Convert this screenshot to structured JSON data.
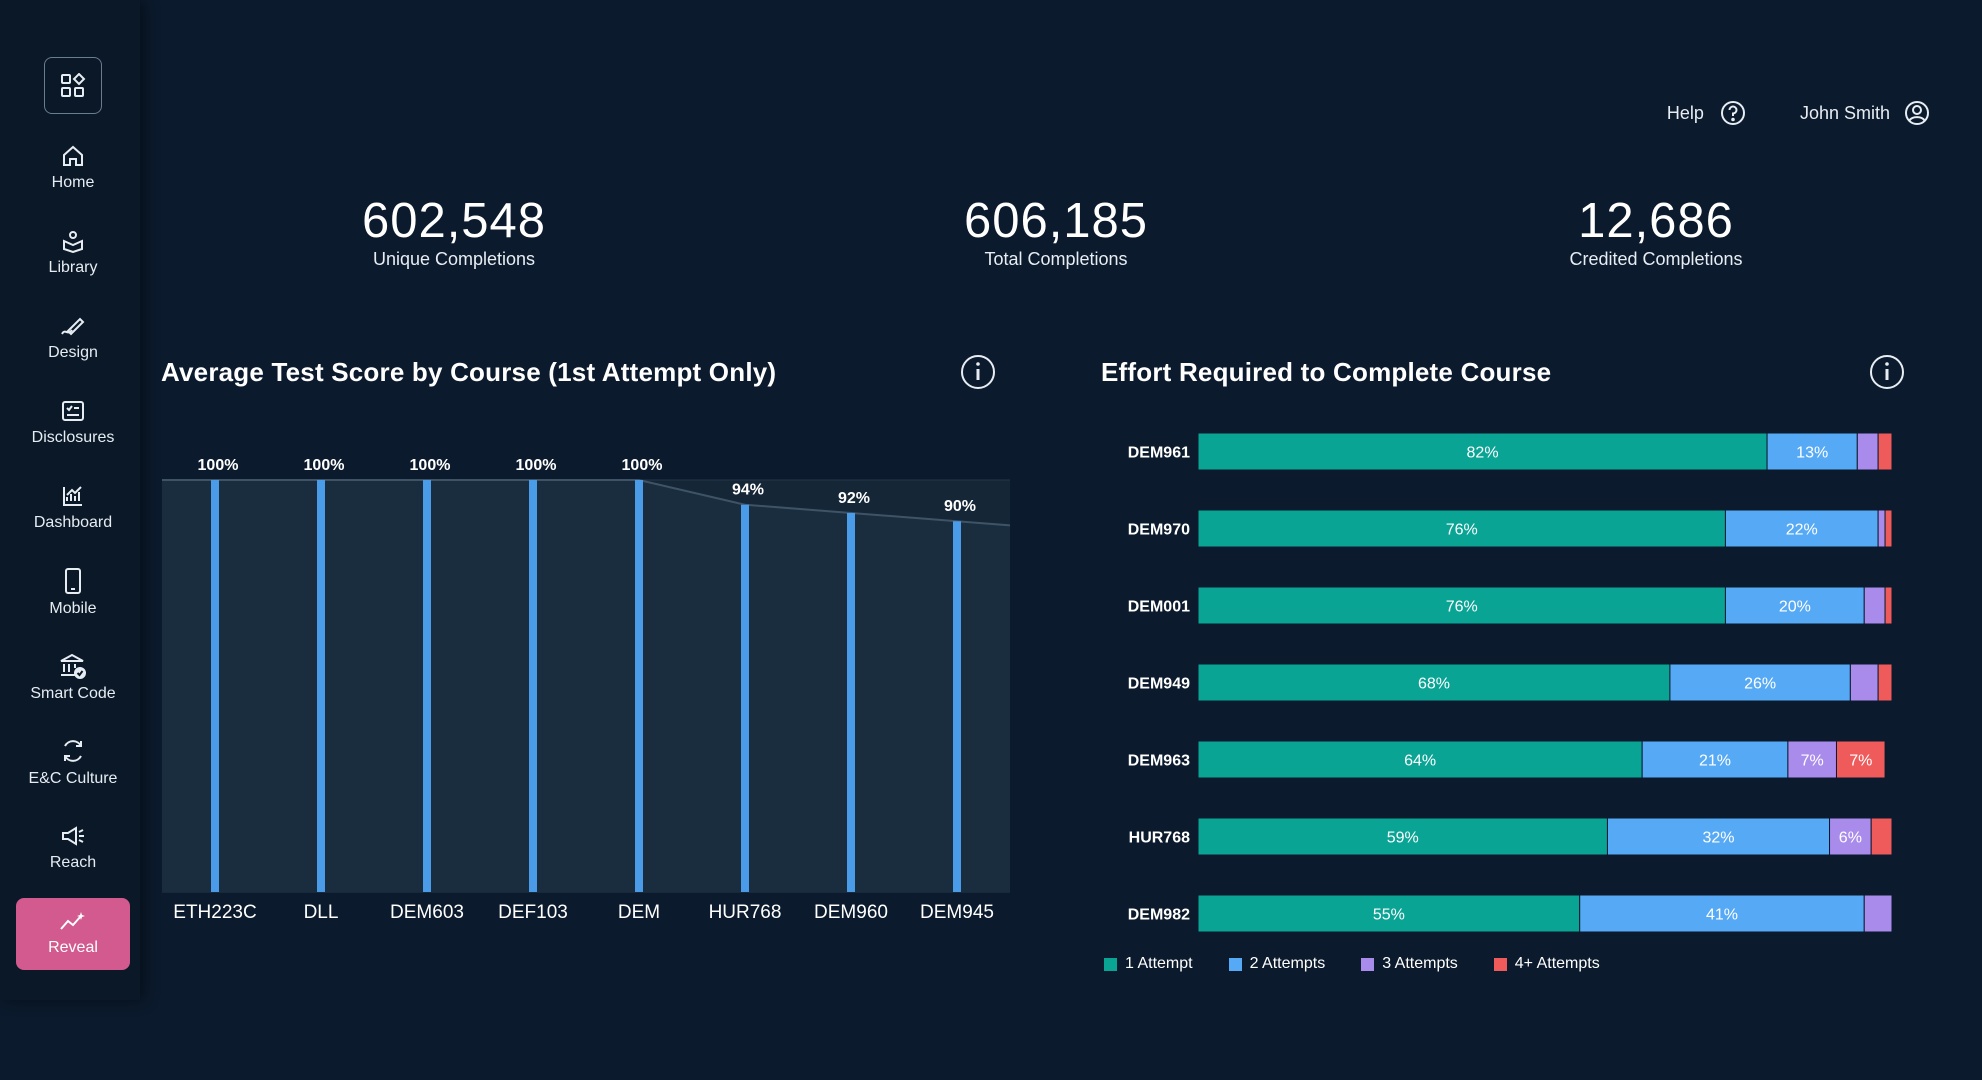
{
  "sidebar": {
    "items": [
      {
        "label": "Home",
        "icon": "home-icon"
      },
      {
        "label": "Library",
        "icon": "library-icon"
      },
      {
        "label": "Design",
        "icon": "design-icon"
      },
      {
        "label": "Disclosures",
        "icon": "disclosures-icon"
      },
      {
        "label": "Dashboard",
        "icon": "dashboard-icon"
      },
      {
        "label": "Mobile",
        "icon": "mobile-icon"
      },
      {
        "label": "Smart Code",
        "icon": "smart-code-icon"
      },
      {
        "label": "E&C Culture",
        "icon": "culture-icon"
      },
      {
        "label": "Reach",
        "icon": "reach-icon"
      },
      {
        "label": "Reveal",
        "icon": "reveal-icon"
      }
    ],
    "active_accent": "#d25a8f"
  },
  "header": {
    "help_label": "Help",
    "user_name": "John Smith"
  },
  "kpis": [
    {
      "value": "602,548",
      "label": "Unique Completions"
    },
    {
      "value": "606,185",
      "label": "Total Completions"
    },
    {
      "value": "12,686",
      "label": "Credited Completions"
    }
  ],
  "panels": {
    "left_title": "Average Test Score by Course (1st Attempt Only)",
    "right_title": "Effort Required to Complete Course"
  },
  "chart_data": [
    {
      "type": "bar",
      "title": "Average Test Score by Course (1st Attempt Only)",
      "categories": [
        "ETH223C",
        "DLL",
        "DEM603",
        "DEF103",
        "DEM",
        "HUR768",
        "DEM960",
        "DEM945"
      ],
      "values": [
        100,
        100,
        100,
        100,
        100,
        94,
        92,
        90
      ],
      "value_labels": [
        "100%",
        "100%",
        "100%",
        "100%",
        "100%",
        "94%",
        "92%",
        "90%"
      ],
      "ylim": [
        0,
        100
      ],
      "grid": true,
      "color": "#4a9be8"
    },
    {
      "type": "bar",
      "orientation": "horizontal",
      "stacked": true,
      "title": "Effort Required to Complete Course",
      "categories": [
        "DEM961",
        "DEM970",
        "DEM001",
        "DEM949",
        "DEM963",
        "HUR768",
        "DEM982"
      ],
      "series": [
        {
          "name": "1 Attempt",
          "color": "#0aa495",
          "values": [
            82,
            76,
            76,
            68,
            64,
            59,
            55
          ],
          "labels": [
            "82%",
            "76%",
            "76%",
            "68%",
            "64%",
            "59%",
            "55%"
          ]
        },
        {
          "name": "2 Attempts",
          "color": "#56a9f5",
          "values": [
            13,
            22,
            20,
            26,
            21,
            32,
            41
          ],
          "labels": [
            "13%",
            "22%",
            "20%",
            "26%",
            "21%",
            "32%",
            "41%"
          ]
        },
        {
          "name": "3 Attempts",
          "color": "#a98bec",
          "values": [
            3,
            1,
            3,
            4,
            7,
            6,
            4
          ],
          "labels": [
            "",
            "",
            "",
            "",
            "7%",
            "6%",
            ""
          ]
        },
        {
          "name": "4+ Attempts",
          "color": "#ef5b5b",
          "values": [
            2,
            1,
            1,
            2,
            7,
            3,
            0
          ],
          "labels": [
            "",
            "",
            "",
            "",
            "7%",
            "",
            ""
          ]
        }
      ],
      "xlim": [
        0,
        100
      ],
      "legend": "bottom-left"
    }
  ]
}
